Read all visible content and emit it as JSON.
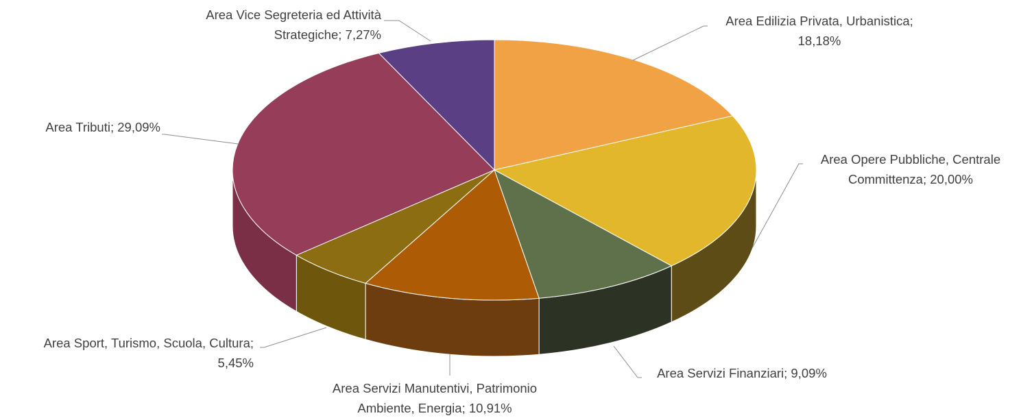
{
  "chart_data": {
    "type": "pie",
    "style": "3d",
    "start_angle_deg": 0,
    "direction": "clockwise",
    "slices": [
      {
        "label_lines": [
          "Area Edilizia Privata, Urbanistica;",
          "18,18%"
        ],
        "value": 18.18,
        "color": "#f0a244",
        "side_color": "#8a5e24"
      },
      {
        "label_lines": [
          "Area Opere Pubbliche, Centrale",
          "Committenza; 20,00%"
        ],
        "value": 20.0,
        "color": "#e3b72b",
        "side_color": "#5e4c17"
      },
      {
        "label_lines": [
          "Area Servizi Finanziari; 9,09%"
        ],
        "value": 9.09,
        "color": "#5f714a",
        "side_color": "#2c3324"
      },
      {
        "label_lines": [
          "Area Servizi Manutentivi, Patrimonio",
          "Ambiente, Energia; 10,91%"
        ],
        "value": 10.91,
        "color": "#ad5c05",
        "side_color": "#6e3d0f"
      },
      {
        "label_lines": [
          "Area Sport, Turismo, Scuola, Cultura;",
          "5,45%"
        ],
        "value": 5.45,
        "color": "#8c6d12",
        "side_color": "#6e560d"
      },
      {
        "label_lines": [
          "Area Tributi; 29,09%"
        ],
        "value": 29.09,
        "color": "#953d59",
        "side_color": "#7a2f47"
      },
      {
        "label_lines": [
          "Area Vice Segreteria ed Attività",
          "Strategiche; 7,27%"
        ],
        "value": 7.27,
        "color": "#5a3f84",
        "side_color": "#3f2c5f"
      }
    ]
  }
}
